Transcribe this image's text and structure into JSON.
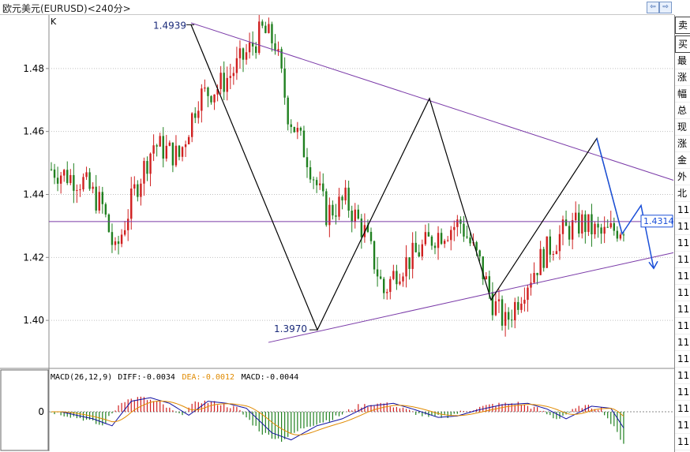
{
  "window": {
    "title": "欧元美元(EURUSD)<240分>",
    "nav_prev": "⇦",
    "nav_next": "⇨"
  },
  "chart_data": [
    {
      "type": "candlestick",
      "title": "K",
      "ylim": [
        1.385,
        1.497
      ],
      "yticks": [
        "1.48",
        "1.46",
        "1.44",
        "1.42",
        "1.40"
      ],
      "ytick_values": [
        1.48,
        1.46,
        1.44,
        1.42,
        1.4
      ],
      "candles": 180,
      "price_anchors": [
        [
          0,
          1.448
        ],
        [
          10,
          1.444
        ],
        [
          16,
          1.436
        ],
        [
          20,
          1.421
        ],
        [
          26,
          1.441
        ],
        [
          32,
          1.456
        ],
        [
          40,
          1.452
        ],
        [
          46,
          1.471
        ],
        [
          52,
          1.474
        ],
        [
          56,
          1.478
        ],
        [
          62,
          1.486
        ],
        [
          66,
          1.492
        ],
        [
          70,
          1.488
        ],
        [
          74,
          1.466
        ],
        [
          80,
          1.452
        ],
        [
          86,
          1.434
        ],
        [
          92,
          1.438
        ],
        [
          98,
          1.428
        ],
        [
          104,
          1.409
        ],
        [
          108,
          1.416
        ],
        [
          114,
          1.421
        ],
        [
          120,
          1.427
        ],
        [
          128,
          1.431
        ],
        [
          134,
          1.418
        ],
        [
          138,
          1.406
        ],
        [
          142,
          1.399
        ],
        [
          148,
          1.411
        ],
        [
          154,
          1.421
        ],
        [
          160,
          1.428
        ],
        [
          166,
          1.431
        ],
        [
          172,
          1.427
        ],
        [
          179,
          1.43
        ]
      ],
      "price_labels": [
        {
          "text": "1.4939",
          "value": 1.4939
        },
        {
          "text": "1.3970",
          "value": 1.397
        }
      ],
      "current_price": {
        "text": "1.4314",
        "value": 1.4314
      },
      "colors": {
        "up": "#d02020",
        "down": "#208020",
        "trendline": "#7a3aa8",
        "zigzag": "#000000",
        "projection": "#1a4fd8",
        "grid": "#c0c0c0"
      }
    },
    {
      "type": "bar",
      "title": "MACD(26,12,9)",
      "legend": [
        {
          "label": "DIFF:",
          "value": "-0.0034",
          "color": "#000000"
        },
        {
          "label": "DEA:",
          "value": "-0.0012",
          "color": "#e08a00"
        },
        {
          "label": "MACD:",
          "value": "-0.0044",
          "color": "#000000"
        }
      ],
      "zero_label": "0",
      "histogram_anchors": [
        [
          0,
          0.0
        ],
        [
          10,
          -0.001
        ],
        [
          16,
          -0.002
        ],
        [
          22,
          0.0015
        ],
        [
          28,
          0.002
        ],
        [
          34,
          0.0012
        ],
        [
          40,
          -0.0005
        ],
        [
          46,
          0.0015
        ],
        [
          52,
          0.0012
        ],
        [
          58,
          0.0005
        ],
        [
          66,
          -0.003
        ],
        [
          72,
          -0.004
        ],
        [
          80,
          -0.002
        ],
        [
          88,
          -0.001
        ],
        [
          96,
          0.0008
        ],
        [
          104,
          0.0012
        ],
        [
          110,
          0.0004
        ],
        [
          118,
          -0.0008
        ],
        [
          124,
          -0.0006
        ],
        [
          130,
          0.0002
        ],
        [
          138,
          0.001
        ],
        [
          146,
          0.0012
        ],
        [
          152,
          0.0004
        ],
        [
          158,
          -0.001
        ],
        [
          166,
          0.0008
        ],
        [
          172,
          0.0005
        ],
        [
          179,
          -0.0044
        ]
      ],
      "diff_line_color": "#1010a0",
      "dea_line_color": "#e08a00"
    }
  ],
  "side_panel": {
    "rows": [
      "卖",
      "买",
      "最",
      "涨",
      "幅",
      "总",
      "现",
      "涨",
      "金",
      "外",
      "北",
      "11",
      "11",
      "11",
      "11",
      "11",
      "11",
      "11",
      "11",
      "11",
      "11",
      "11",
      "11",
      "11",
      "11",
      "11",
      "11"
    ]
  }
}
